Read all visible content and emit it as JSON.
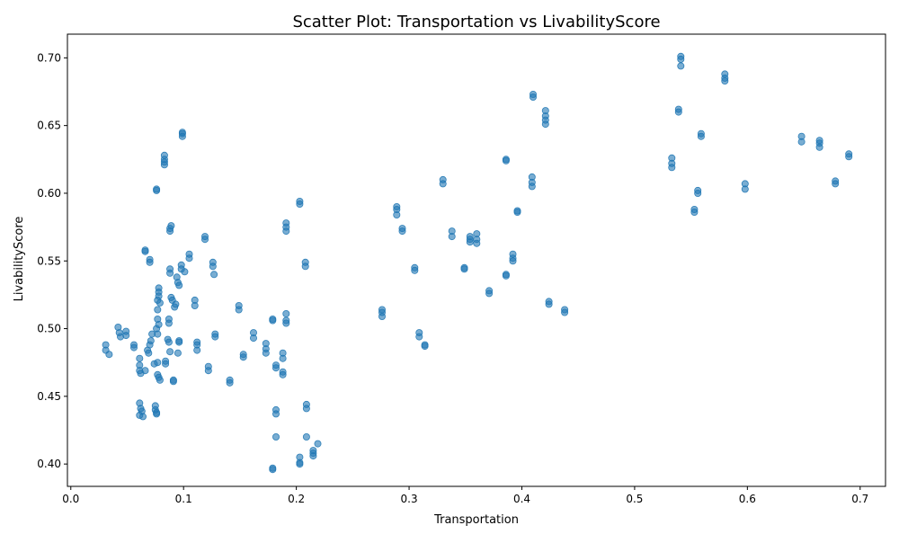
{
  "chart_data": {
    "type": "scatter",
    "title": "Scatter Plot: Transportation vs LivabilityScore",
    "xlabel": "Transportation",
    "ylabel": "LivabilityScore",
    "xlim": [
      -0.003,
      0.7225
    ],
    "ylim": [
      0.3835,
      0.7175
    ],
    "xticks": [
      0.0,
      0.1,
      0.2,
      0.3,
      0.4,
      0.5,
      0.6,
      0.7
    ],
    "xtick_labels": [
      "0.0",
      "0.1",
      "0.2",
      "0.3",
      "0.4",
      "0.5",
      "0.6",
      "0.7"
    ],
    "yticks": [
      0.4,
      0.45,
      0.5,
      0.55,
      0.6,
      0.65,
      0.7
    ],
    "ytick_labels": [
      "0.40",
      "0.45",
      "0.50",
      "0.55",
      "0.60",
      "0.65",
      "0.70"
    ],
    "grid": false,
    "legend": "none",
    "color": "#1f77b4",
    "points": [
      [
        0.031,
        0.488
      ],
      [
        0.031,
        0.484
      ],
      [
        0.034,
        0.481
      ],
      [
        0.042,
        0.501
      ],
      [
        0.043,
        0.497
      ],
      [
        0.044,
        0.494
      ],
      [
        0.049,
        0.498
      ],
      [
        0.049,
        0.495
      ],
      [
        0.056,
        0.488
      ],
      [
        0.056,
        0.486
      ],
      [
        0.061,
        0.445
      ],
      [
        0.061,
        0.436
      ],
      [
        0.062,
        0.441
      ],
      [
        0.063,
        0.439
      ],
      [
        0.064,
        0.435
      ],
      [
        0.061,
        0.478
      ],
      [
        0.061,
        0.473
      ],
      [
        0.061,
        0.469
      ],
      [
        0.062,
        0.467
      ],
      [
        0.066,
        0.469
      ],
      [
        0.066,
        0.558
      ],
      [
        0.066,
        0.557
      ],
      [
        0.07,
        0.551
      ],
      [
        0.07,
        0.549
      ],
      [
        0.068,
        0.484
      ],
      [
        0.069,
        0.482
      ],
      [
        0.07,
        0.488
      ],
      [
        0.071,
        0.491
      ],
      [
        0.072,
        0.496
      ],
      [
        0.074,
        0.474
      ],
      [
        0.075,
        0.443
      ],
      [
        0.075,
        0.44
      ],
      [
        0.076,
        0.437
      ],
      [
        0.076,
        0.438
      ],
      [
        0.076,
        0.602
      ],
      [
        0.076,
        0.603
      ],
      [
        0.076,
        0.5
      ],
      [
        0.077,
        0.496
      ],
      [
        0.077,
        0.507
      ],
      [
        0.078,
        0.503
      ],
      [
        0.077,
        0.475
      ],
      [
        0.077,
        0.466
      ],
      [
        0.078,
        0.464
      ],
      [
        0.079,
        0.462
      ],
      [
        0.077,
        0.514
      ],
      [
        0.077,
        0.521
      ],
      [
        0.078,
        0.524
      ],
      [
        0.078,
        0.527
      ],
      [
        0.078,
        0.53
      ],
      [
        0.079,
        0.519
      ],
      [
        0.083,
        0.621
      ],
      [
        0.083,
        0.623
      ],
      [
        0.083,
        0.625
      ],
      [
        0.083,
        0.628
      ],
      [
        0.084,
        0.476
      ],
      [
        0.084,
        0.474
      ],
      [
        0.086,
        0.492
      ],
      [
        0.087,
        0.49
      ],
      [
        0.088,
        0.483
      ],
      [
        0.087,
        0.504
      ],
      [
        0.087,
        0.507
      ],
      [
        0.088,
        0.572
      ],
      [
        0.088,
        0.574
      ],
      [
        0.089,
        0.576
      ],
      [
        0.088,
        0.544
      ],
      [
        0.088,
        0.541
      ],
      [
        0.089,
        0.523
      ],
      [
        0.09,
        0.521
      ],
      [
        0.091,
        0.462
      ],
      [
        0.091,
        0.461
      ],
      [
        0.092,
        0.516
      ],
      [
        0.093,
        0.518
      ],
      [
        0.094,
        0.538
      ],
      [
        0.095,
        0.534
      ],
      [
        0.096,
        0.532
      ],
      [
        0.095,
        0.482
      ],
      [
        0.096,
        0.49
      ],
      [
        0.096,
        0.491
      ],
      [
        0.098,
        0.547
      ],
      [
        0.098,
        0.544
      ],
      [
        0.101,
        0.542
      ],
      [
        0.099,
        0.642
      ],
      [
        0.099,
        0.645
      ],
      [
        0.099,
        0.644
      ],
      [
        0.105,
        0.555
      ],
      [
        0.105,
        0.552
      ],
      [
        0.11,
        0.521
      ],
      [
        0.11,
        0.517
      ],
      [
        0.112,
        0.484
      ],
      [
        0.112,
        0.49
      ],
      [
        0.112,
        0.488
      ],
      [
        0.119,
        0.568
      ],
      [
        0.119,
        0.566
      ],
      [
        0.122,
        0.472
      ],
      [
        0.122,
        0.469
      ],
      [
        0.126,
        0.549
      ],
      [
        0.126,
        0.546
      ],
      [
        0.127,
        0.54
      ],
      [
        0.128,
        0.496
      ],
      [
        0.128,
        0.494
      ],
      [
        0.141,
        0.462
      ],
      [
        0.141,
        0.46
      ],
      [
        0.149,
        0.517
      ],
      [
        0.149,
        0.514
      ],
      [
        0.153,
        0.481
      ],
      [
        0.153,
        0.479
      ],
      [
        0.162,
        0.497
      ],
      [
        0.162,
        0.493
      ],
      [
        0.173,
        0.489
      ],
      [
        0.173,
        0.485
      ],
      [
        0.173,
        0.482
      ],
      [
        0.179,
        0.506
      ],
      [
        0.179,
        0.507
      ],
      [
        0.179,
        0.397
      ],
      [
        0.179,
        0.396
      ],
      [
        0.182,
        0.473
      ],
      [
        0.182,
        0.471
      ],
      [
        0.182,
        0.44
      ],
      [
        0.182,
        0.437
      ],
      [
        0.182,
        0.42
      ],
      [
        0.188,
        0.482
      ],
      [
        0.188,
        0.478
      ],
      [
        0.188,
        0.468
      ],
      [
        0.188,
        0.466
      ],
      [
        0.191,
        0.578
      ],
      [
        0.191,
        0.575
      ],
      [
        0.191,
        0.572
      ],
      [
        0.191,
        0.511
      ],
      [
        0.191,
        0.506
      ],
      [
        0.191,
        0.504
      ],
      [
        0.203,
        0.594
      ],
      [
        0.203,
        0.592
      ],
      [
        0.203,
        0.405
      ],
      [
        0.203,
        0.401
      ],
      [
        0.203,
        0.4
      ],
      [
        0.208,
        0.549
      ],
      [
        0.208,
        0.546
      ],
      [
        0.209,
        0.444
      ],
      [
        0.209,
        0.441
      ],
      [
        0.209,
        0.42
      ],
      [
        0.215,
        0.41
      ],
      [
        0.215,
        0.408
      ],
      [
        0.215,
        0.406
      ],
      [
        0.219,
        0.415
      ],
      [
        0.276,
        0.514
      ],
      [
        0.276,
        0.512
      ],
      [
        0.276,
        0.509
      ],
      [
        0.289,
        0.59
      ],
      [
        0.289,
        0.588
      ],
      [
        0.289,
        0.584
      ],
      [
        0.294,
        0.574
      ],
      [
        0.294,
        0.572
      ],
      [
        0.305,
        0.545
      ],
      [
        0.305,
        0.543
      ],
      [
        0.309,
        0.497
      ],
      [
        0.309,
        0.494
      ],
      [
        0.314,
        0.488
      ],
      [
        0.314,
        0.487
      ],
      [
        0.33,
        0.61
      ],
      [
        0.33,
        0.607
      ],
      [
        0.338,
        0.572
      ],
      [
        0.338,
        0.568
      ],
      [
        0.349,
        0.544
      ],
      [
        0.349,
        0.545
      ],
      [
        0.354,
        0.568
      ],
      [
        0.354,
        0.566
      ],
      [
        0.354,
        0.564
      ],
      [
        0.36,
        0.57
      ],
      [
        0.36,
        0.566
      ],
      [
        0.36,
        0.563
      ],
      [
        0.371,
        0.528
      ],
      [
        0.371,
        0.526
      ],
      [
        0.386,
        0.625
      ],
      [
        0.386,
        0.624
      ],
      [
        0.386,
        0.54
      ],
      [
        0.386,
        0.539
      ],
      [
        0.392,
        0.555
      ],
      [
        0.392,
        0.552
      ],
      [
        0.392,
        0.55
      ],
      [
        0.396,
        0.587
      ],
      [
        0.396,
        0.586
      ],
      [
        0.409,
        0.612
      ],
      [
        0.409,
        0.608
      ],
      [
        0.409,
        0.605
      ],
      [
        0.41,
        0.673
      ],
      [
        0.41,
        0.671
      ],
      [
        0.421,
        0.661
      ],
      [
        0.421,
        0.657
      ],
      [
        0.421,
        0.654
      ],
      [
        0.421,
        0.651
      ],
      [
        0.424,
        0.52
      ],
      [
        0.424,
        0.518
      ],
      [
        0.438,
        0.514
      ],
      [
        0.438,
        0.512
      ],
      [
        0.533,
        0.626
      ],
      [
        0.533,
        0.622
      ],
      [
        0.533,
        0.619
      ],
      [
        0.539,
        0.662
      ],
      [
        0.539,
        0.66
      ],
      [
        0.541,
        0.701
      ],
      [
        0.541,
        0.699
      ],
      [
        0.541,
        0.694
      ],
      [
        0.553,
        0.588
      ],
      [
        0.553,
        0.586
      ],
      [
        0.556,
        0.602
      ],
      [
        0.556,
        0.6
      ],
      [
        0.559,
        0.644
      ],
      [
        0.559,
        0.642
      ],
      [
        0.58,
        0.688
      ],
      [
        0.58,
        0.685
      ],
      [
        0.58,
        0.683
      ],
      [
        0.598,
        0.607
      ],
      [
        0.598,
        0.603
      ],
      [
        0.648,
        0.642
      ],
      [
        0.648,
        0.638
      ],
      [
        0.664,
        0.639
      ],
      [
        0.664,
        0.637
      ],
      [
        0.664,
        0.634
      ],
      [
        0.678,
        0.609
      ],
      [
        0.678,
        0.607
      ],
      [
        0.69,
        0.629
      ],
      [
        0.69,
        0.627
      ]
    ]
  }
}
